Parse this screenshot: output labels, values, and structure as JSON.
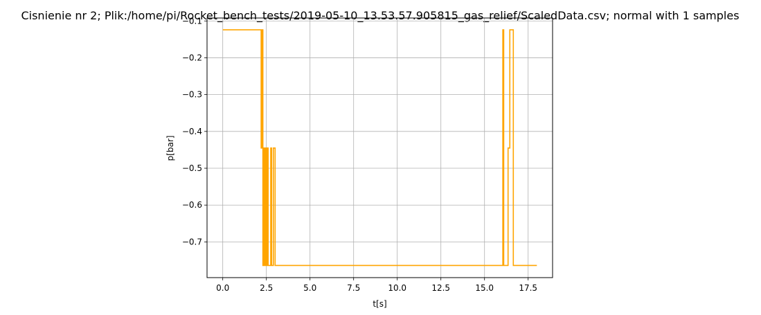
{
  "chart_data": {
    "type": "line",
    "title": "Cisnienie nr 2; Plik:/home/pi/Rocket_bench_tests/2019-05-10_13.53.57.905815_gas_relief/ScaledData.csv; normal with 1 samples",
    "xlabel": "t[s]",
    "ylabel": "p[bar]",
    "xlim": [
      -0.9,
      18.9
    ],
    "ylim": [
      -0.797,
      -0.092
    ],
    "x_ticks": [
      0.0,
      2.5,
      5.0,
      7.5,
      10.0,
      12.5,
      15.0,
      17.5
    ],
    "x_tick_labels": [
      "0.0",
      "2.5",
      "5.0",
      "7.5",
      "10.0",
      "12.5",
      "15.0",
      "17.5"
    ],
    "y_ticks": [
      -0.1,
      -0.2,
      -0.3,
      -0.4,
      -0.5,
      -0.6,
      -0.7
    ],
    "y_tick_labels": [
      "−0.1",
      "−0.2",
      "−0.3",
      "−0.4",
      "−0.5",
      "−0.6",
      "−0.7"
    ],
    "grid": true,
    "series": [
      {
        "color": "#ffa500",
        "x": [
          0.0,
          2.2,
          2.2,
          2.25,
          2.25,
          2.3,
          2.3,
          2.35,
          2.35,
          2.4,
          2.4,
          2.45,
          2.45,
          2.5,
          2.5,
          2.55,
          2.55,
          2.6,
          2.6,
          2.65,
          2.65,
          2.75,
          2.75,
          2.8,
          2.8,
          2.9,
          2.9,
          3.0,
          3.0,
          3.05,
          3.05,
          16.05,
          16.05,
          16.1,
          16.1,
          16.35,
          16.35,
          16.45,
          16.45,
          16.55,
          16.55,
          16.65,
          16.65,
          18.0
        ],
        "y": [
          -0.124,
          -0.124,
          -0.445,
          -0.445,
          -0.124,
          -0.124,
          -0.764,
          -0.764,
          -0.445,
          -0.445,
          -0.764,
          -0.764,
          -0.445,
          -0.445,
          -0.764,
          -0.764,
          -0.445,
          -0.445,
          -0.764,
          -0.764,
          -0.764,
          -0.764,
          -0.445,
          -0.445,
          -0.764,
          -0.764,
          -0.445,
          -0.445,
          -0.764,
          -0.764,
          -0.764,
          -0.764,
          -0.124,
          -0.124,
          -0.764,
          -0.764,
          -0.445,
          -0.445,
          -0.124,
          -0.124,
          -0.124,
          -0.124,
          -0.764,
          -0.764
        ]
      }
    ]
  }
}
